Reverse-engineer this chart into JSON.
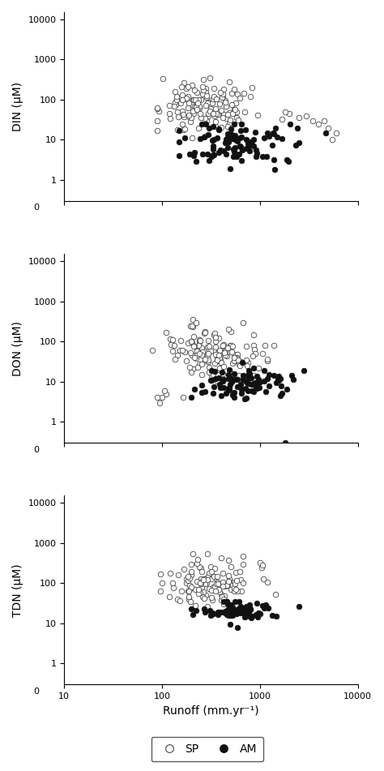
{
  "subplots": [
    {
      "ylabel": "DIN (μM)"
    },
    {
      "ylabel": "DON (μM)"
    },
    {
      "ylabel": "TDN (μM)"
    }
  ],
  "xlabel": "Runoff (mm.yr⁻¹)",
  "SP_color": "white",
  "SP_edgecolor": "#444444",
  "AM_color": "#111111",
  "AM_edgecolor": "#111111",
  "marker_size": 22,
  "marker_lw": 0.6,
  "legend_labels": [
    "SP",
    "AM"
  ],
  "background_color": "white",
  "fig_width": 4.74,
  "fig_height": 9.51,
  "dpi": 100
}
